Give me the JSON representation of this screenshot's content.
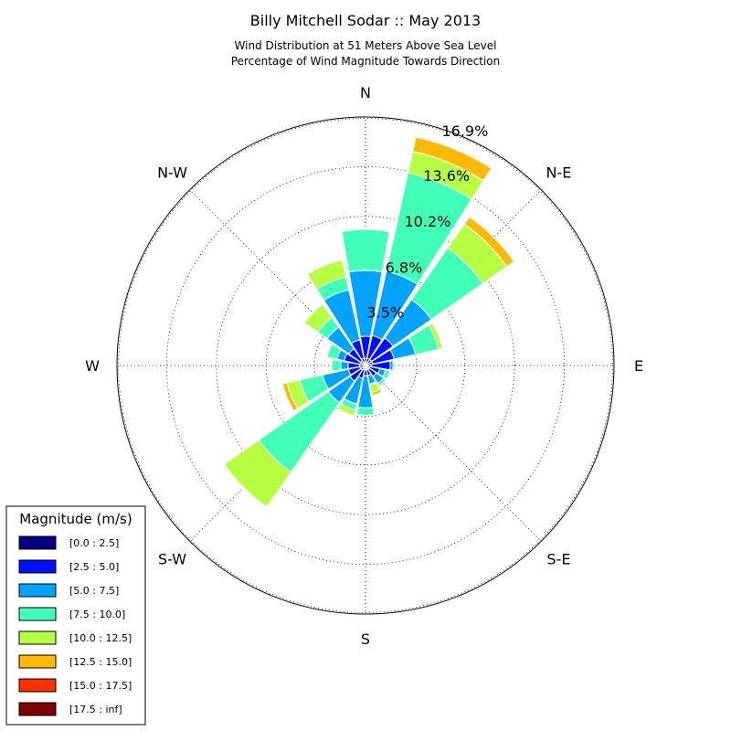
{
  "chart_data": {
    "type": "windrose",
    "title": "Billy Mitchell Sodar :: May 2013",
    "subtitle_lines": [
      "Wind Distribution at 51 Meters Above Sea Level",
      "Percentage of Wind Magnitude Towards Direction"
    ],
    "direction_labels": [
      "N",
      "N-E",
      "E",
      "S-E",
      "S",
      "S-W",
      "W",
      "N-W"
    ],
    "ring_values": [
      3.5,
      6.8,
      10.2,
      13.6,
      16.9
    ],
    "ring_labels": [
      "3.5%",
      "6.8%",
      "10.2%",
      "13.6%",
      "16.9%"
    ],
    "r_max": 17.0,
    "sector_width_deg": 22.5,
    "sector_angles_deg": [
      0,
      22.5,
      45,
      67.5,
      90,
      112.5,
      135,
      157.5,
      180,
      202.5,
      225,
      247.5,
      270,
      292.5,
      315,
      337.5
    ],
    "legend": {
      "title": "Magnitude (m/s)",
      "bins": [
        {
          "label": "[0.0 : 2.5]",
          "color": "#00007f"
        },
        {
          "label": "[2.5 : 5.0]",
          "color": "#0010ff"
        },
        {
          "label": "[5.0 : 7.5]",
          "color": "#00a4ff"
        },
        {
          "label": "[7.5 : 10.0]",
          "color": "#40ffb6"
        },
        {
          "label": "[10.0 : 12.5]",
          "color": "#b6ff40"
        },
        {
          "label": "[12.5 : 15.0]",
          "color": "#ffb900"
        },
        {
          "label": "[15.0 : 17.5]",
          "color": "#ff3000"
        },
        {
          "label": "[17.5 : inf]",
          "color": "#7f0000"
        }
      ]
    },
    "series": [
      {
        "name": "[0.0 : 2.5]",
        "values": [
          0.5,
          0.5,
          0.5,
          0.5,
          0.4,
          0.3,
          0.3,
          0.3,
          0.3,
          0.3,
          0.4,
          0.4,
          0.4,
          0.4,
          0.4,
          0.5
        ]
      },
      {
        "name": "[2.5 : 5.0]",
        "values": [
          1.5,
          1.6,
          1.8,
          1.5,
          1.3,
          0.7,
          0.6,
          0.4,
          0.4,
          0.6,
          0.9,
          0.8,
          0.8,
          1.1,
          1.0,
          1.3
        ]
      },
      {
        "name": "[5.0 : 7.5]",
        "values": [
          4.5,
          4.5,
          3.2,
          1.5,
          0.2,
          0.4,
          0.6,
          0.6,
          2.2,
          1.8,
          1.8,
          1.8,
          0.5,
          0.5,
          1.8,
          3.5
        ]
      },
      {
        "name": "[7.5 : 10.0]",
        "values": [
          2.8,
          6.9,
          4.3,
          1.6,
          0.1,
          0.3,
          0.2,
          0.1,
          0.5,
          0.4,
          5.8,
          1.6,
          0.6,
          0.7,
          0.8,
          0.9
        ]
      },
      {
        "name": "[10.0 : 12.5]",
        "values": [
          0.0,
          1.5,
          2.0,
          0.3,
          0.0,
          0.0,
          0.0,
          0.5,
          0.0,
          0.4,
          2.9,
          0.9,
          0.0,
          0.0,
          1.1,
          1.2
        ]
      },
      {
        "name": "[12.5 : 15.0]",
        "values": [
          0.0,
          1.0,
          0.6,
          0.0,
          0.0,
          0.0,
          0.0,
          0.2,
          0.0,
          0.0,
          0.0,
          0.3,
          0.0,
          0.0,
          0.0,
          0.0
        ]
      },
      {
        "name": "[15.0 : 17.5]",
        "values": [
          0,
          0,
          0,
          0,
          0,
          0,
          0,
          0,
          0,
          0,
          0,
          0,
          0,
          0,
          0,
          0
        ]
      },
      {
        "name": "[17.5 : inf]",
        "values": [
          0,
          0,
          0,
          0,
          0,
          0,
          0,
          0,
          0,
          0,
          0,
          0,
          0,
          0,
          0,
          0
        ]
      }
    ]
  }
}
